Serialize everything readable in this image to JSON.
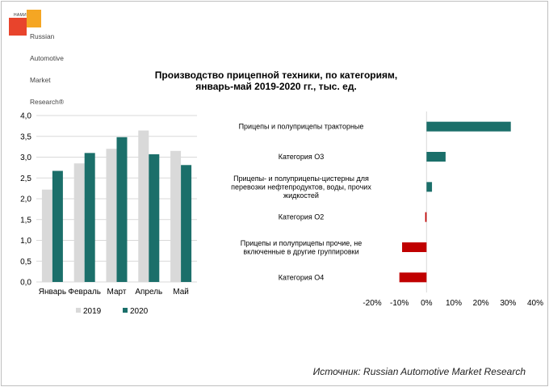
{
  "logo": {
    "nami": "НАМИ",
    "brand_lines": [
      "Russian",
      "Automotive",
      "Market",
      "Research®"
    ]
  },
  "title": {
    "line1": "Производство прицепной техники, по категориям,",
    "line2": "январь-май 2019-2020 гг., тыс. ед."
  },
  "source": "Источник: Russian Automotive Market Research",
  "colors": {
    "series_2019": "#d9d9d9",
    "series_2020": "#1b6f6a",
    "positive": "#1b6f6a",
    "negative": "#c00000",
    "gridline": "#d9d9d9"
  },
  "chart_data": [
    {
      "type": "bar",
      "categories": [
        "Январь",
        "Февраль",
        "Март",
        "Апрель",
        "Май"
      ],
      "series": [
        {
          "name": "2019",
          "values": [
            2.22,
            2.85,
            3.2,
            3.64,
            3.15
          ]
        },
        {
          "name": "2020",
          "values": [
            2.67,
            3.1,
            3.48,
            3.07,
            2.81
          ]
        }
      ],
      "ylim": [
        0,
        4
      ],
      "yticks": [
        "0,0",
        "0,5",
        "1,0",
        "1,5",
        "2,0",
        "2,5",
        "3,0",
        "3,5",
        "4,0"
      ],
      "ytick_values": [
        0,
        0.5,
        1.0,
        1.5,
        2.0,
        2.5,
        3.0,
        3.5,
        4.0
      ],
      "grid": true,
      "legend": "bottom"
    },
    {
      "type": "bar",
      "orientation": "horizontal",
      "categories": [
        [
          "Прицепы и полуприцепы тракторные"
        ],
        [
          "Категория О3"
        ],
        [
          "Прицепы- и полуприцепы-цистерны для",
          "перевозки нефтепродуктов, воды, прочих",
          "жидкостей"
        ],
        [
          "Категория О2"
        ],
        [
          "Прицепы и полуприцепы прочие, не",
          "включенные в другие группировки"
        ],
        [
          "Категория О4"
        ]
      ],
      "values": [
        31,
        7,
        2,
        -0.5,
        -9,
        -10
      ],
      "xlim": [
        -20,
        40
      ],
      "xticks": [
        "-20%",
        "-10%",
        "0%",
        "10%",
        "20%",
        "30%",
        "40%"
      ],
      "xtick_values": [
        -20,
        -10,
        0,
        10,
        20,
        30,
        40
      ],
      "grid": false
    }
  ]
}
